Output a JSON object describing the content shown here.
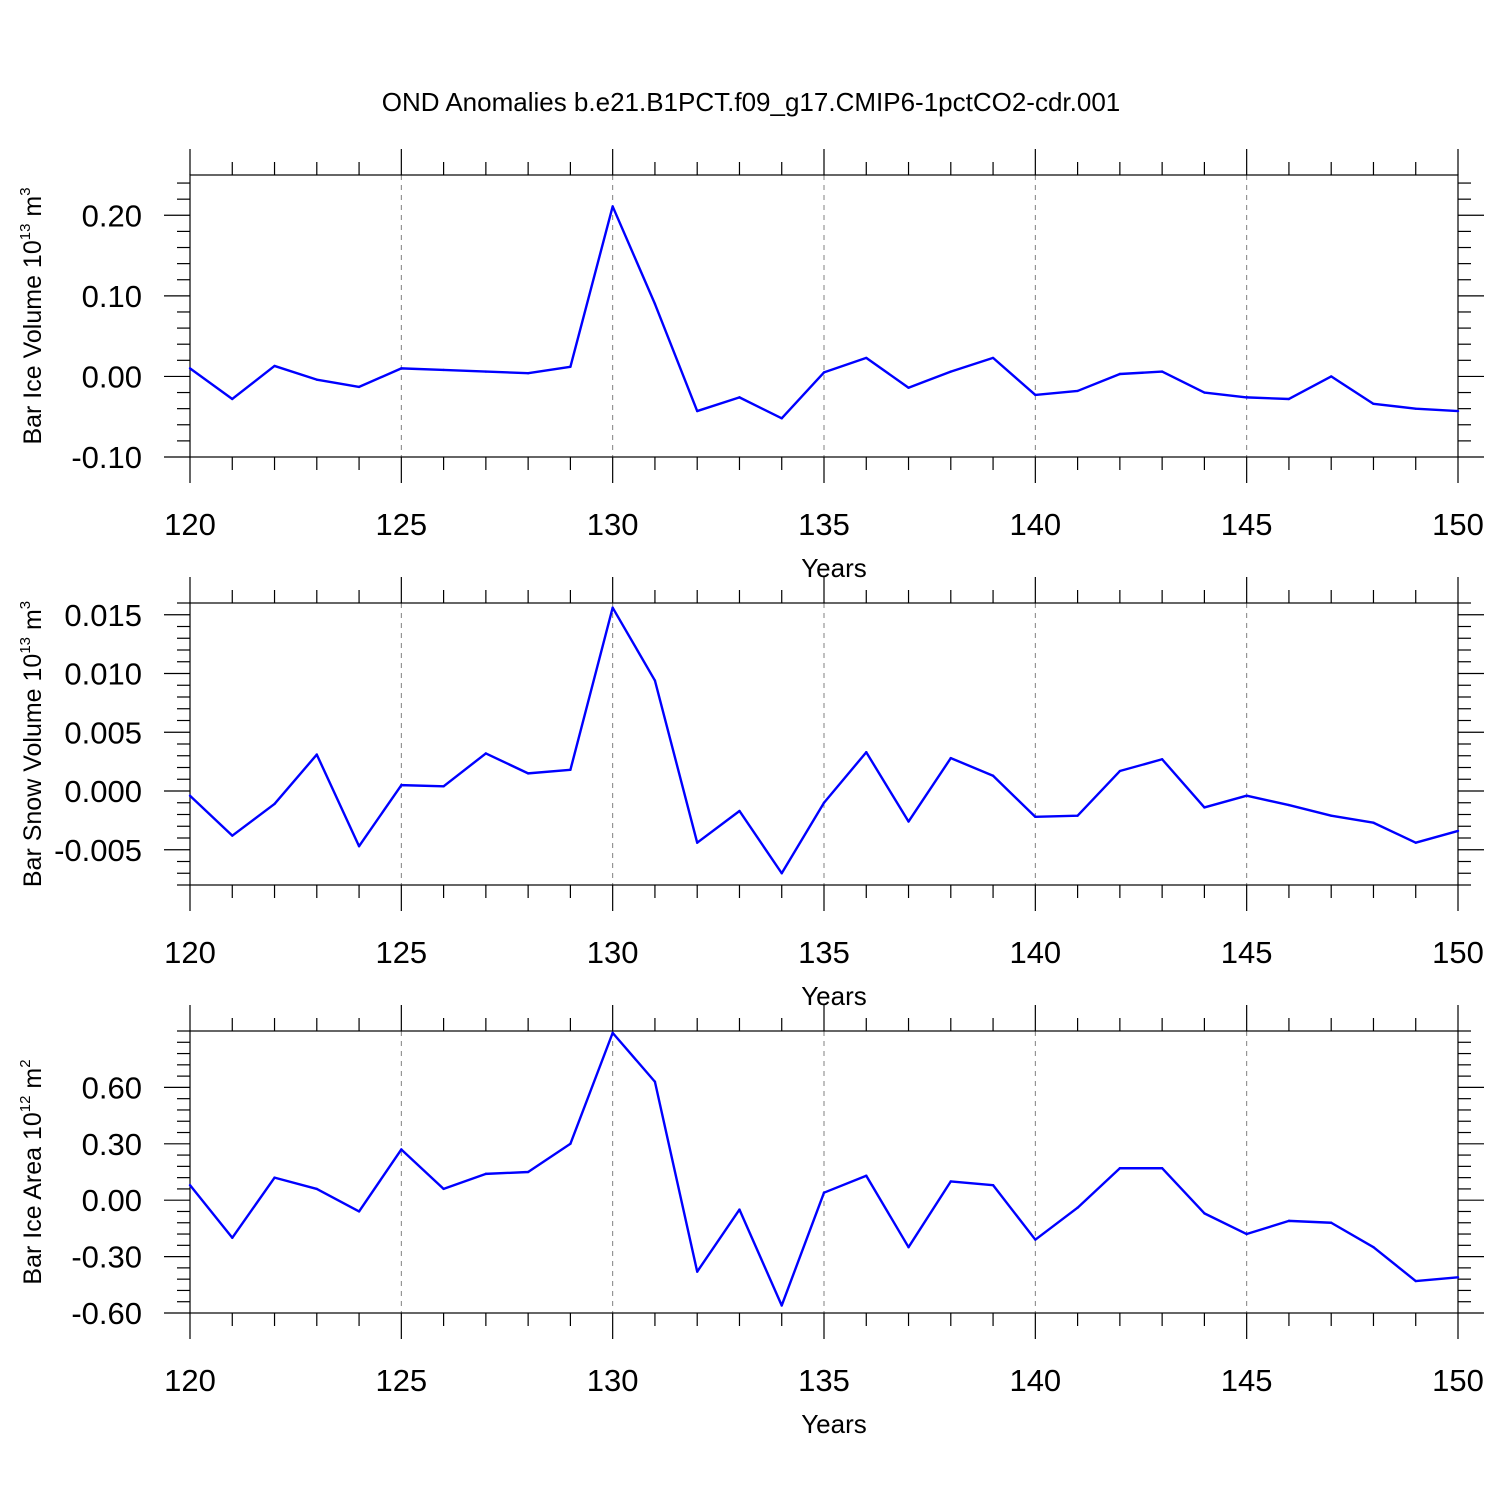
{
  "title": "OND Anomalies b.e21.B1PCT.f09_g17.CMIP6-1pctCO2-cdr.001",
  "colors": {
    "line": "#0000ff",
    "axis": "#000000",
    "grid": "#808080"
  },
  "chart_data": [
    {
      "type": "line",
      "ylabel": {
        "text": "Bar Ice Volume 10",
        "exp": "13",
        "unit": " m",
        "unit_exp": "3"
      },
      "xlabel": "Years",
      "xlim": [
        120,
        150
      ],
      "ylim": [
        -0.1,
        0.25
      ],
      "xticks": [
        120,
        125,
        130,
        135,
        140,
        145,
        150
      ],
      "yticks": [
        -0.1,
        0.0,
        0.1,
        0.2
      ],
      "ytick_labels": [
        "-0.10",
        "0.00",
        "0.10",
        "0.20"
      ],
      "x": [
        120,
        121,
        122,
        123,
        124,
        125,
        126,
        127,
        128,
        129,
        130,
        131,
        132,
        133,
        134,
        135,
        136,
        137,
        138,
        139,
        140,
        141,
        142,
        143,
        144,
        145,
        146,
        147,
        148,
        149,
        150
      ],
      "values": [
        0.01,
        -0.028,
        0.013,
        -0.004,
        -0.013,
        0.01,
        0.008,
        0.006,
        0.004,
        0.012,
        0.211,
        0.09,
        -0.043,
        -0.026,
        -0.052,
        0.005,
        0.023,
        -0.014,
        0.006,
        0.023,
        -0.023,
        -0.018,
        0.003,
        0.006,
        -0.02,
        -0.026,
        -0.028,
        0.0,
        -0.034,
        -0.04,
        -0.043
      ],
      "grid": "vertical dashed at major x ticks"
    },
    {
      "type": "line",
      "ylabel": {
        "text": "Bar Snow Volume 10",
        "exp": "13",
        "unit": " m",
        "unit_exp": "3"
      },
      "xlabel": "Years",
      "xlim": [
        120,
        150
      ],
      "ylim": [
        -0.008,
        0.016
      ],
      "xticks": [
        120,
        125,
        130,
        135,
        140,
        145,
        150
      ],
      "yticks": [
        -0.005,
        0.0,
        0.005,
        0.01,
        0.015
      ],
      "ytick_labels": [
        "-0.005",
        "0.000",
        "0.005",
        "0.010",
        "0.015"
      ],
      "x": [
        120,
        121,
        122,
        123,
        124,
        125,
        126,
        127,
        128,
        129,
        130,
        131,
        132,
        133,
        134,
        135,
        136,
        137,
        138,
        139,
        140,
        141,
        142,
        143,
        144,
        145,
        146,
        147,
        148,
        149,
        150
      ],
      "values": [
        -0.0004,
        -0.0038,
        -0.0011,
        0.0031,
        -0.0047,
        0.0005,
        0.0004,
        0.0032,
        0.0015,
        0.0018,
        0.0156,
        0.0094,
        -0.0044,
        -0.0017,
        -0.007,
        -0.001,
        0.0033,
        -0.0026,
        0.0028,
        0.0013,
        -0.0022,
        -0.0021,
        0.0017,
        0.0027,
        -0.0014,
        -0.0004,
        -0.0012,
        -0.0021,
        -0.0027,
        -0.0044,
        -0.0034
      ],
      "grid": "vertical dashed at major x ticks"
    },
    {
      "type": "line",
      "ylabel": {
        "text": "Bar Ice Area 10",
        "exp": "12",
        "unit": " m",
        "unit_exp": "2"
      },
      "xlabel": "Years",
      "xlim": [
        120,
        150
      ],
      "ylim": [
        -0.6,
        0.9
      ],
      "xticks": [
        120,
        125,
        130,
        135,
        140,
        145,
        150
      ],
      "yticks": [
        -0.6,
        -0.3,
        0.0,
        0.3,
        0.6
      ],
      "ytick_labels": [
        "-0.60",
        "-0.30",
        "0.00",
        "0.30",
        "0.60"
      ],
      "x": [
        120,
        121,
        122,
        123,
        124,
        125,
        126,
        127,
        128,
        129,
        130,
        131,
        132,
        133,
        134,
        135,
        136,
        137,
        138,
        139,
        140,
        141,
        142,
        143,
        144,
        145,
        146,
        147,
        148,
        149,
        150
      ],
      "values": [
        0.08,
        -0.2,
        0.12,
        0.06,
        -0.06,
        0.27,
        0.06,
        0.14,
        0.15,
        0.3,
        0.89,
        0.63,
        -0.38,
        -0.05,
        -0.56,
        0.04,
        0.13,
        -0.25,
        0.1,
        0.08,
        -0.21,
        -0.04,
        0.17,
        0.17,
        -0.07,
        -0.18,
        -0.11,
        -0.12,
        -0.25,
        -0.43,
        -0.41
      ],
      "grid": "vertical dashed at major x ticks"
    }
  ]
}
